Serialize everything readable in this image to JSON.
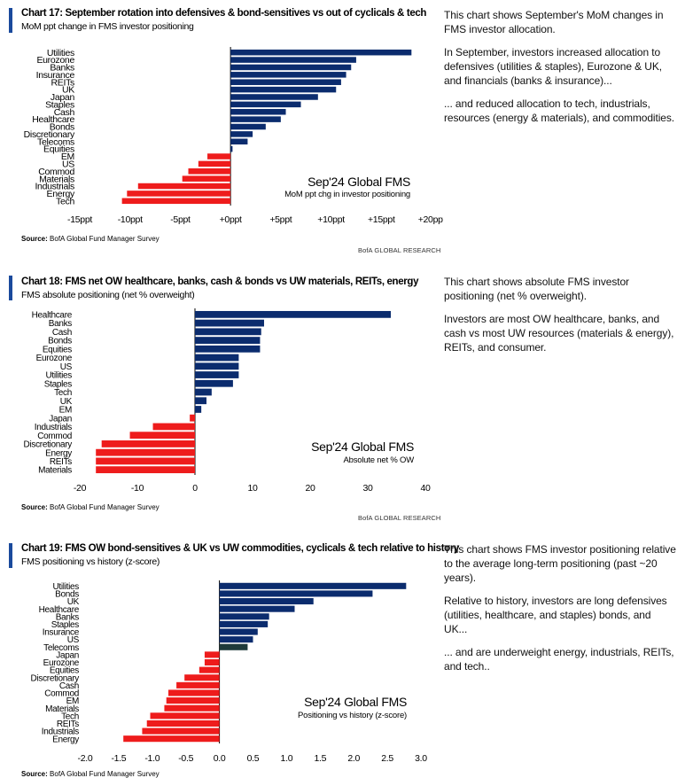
{
  "chart_data": [
    {
      "type": "bar",
      "orientation": "horizontal",
      "title": "Chart 17: September rotation into defensives & bond-sensitives vs out of cyclicals & tech",
      "subtitle": "MoM ppt change in FMS investor positioning",
      "annotation_title": "Sep'24 Global FMS",
      "annotation_sub": "MoM ppt chg in investor positioning",
      "categories": [
        "Utilities",
        "Eurozone",
        "Banks",
        "Insurance",
        "REITs",
        "UK",
        "Japan",
        "Staples",
        "Cash",
        "Healthcare",
        "Bonds",
        "Discretionary",
        "Telecoms",
        "Equities",
        "EM",
        "US",
        "Commod",
        "Materials",
        "Industrials",
        "Energy",
        "Tech"
      ],
      "values": [
        18,
        12.5,
        12,
        11.5,
        11,
        10.5,
        8.7,
        7,
        5.5,
        5,
        3.5,
        2.2,
        1.7,
        0.2,
        -2.3,
        -3.2,
        -4.2,
        -4.8,
        -9.2,
        -10.3,
        -10.8
      ],
      "xlim": [
        -15,
        20
      ],
      "xticks": [
        -15,
        -10,
        -5,
        0,
        5,
        10,
        15,
        20
      ],
      "xtick_labels": [
        "-15ppt",
        "-10ppt",
        "-5ppt",
        "+0ppt",
        "+5ppt",
        "+10ppt",
        "+15ppt",
        "+20ppt"
      ],
      "positive_color": "#0b2c6e",
      "negative_color": "#ee1c1c",
      "source": "BofA Global Fund Manager Survey",
      "source_label": "Source:",
      "brand": "BofA GLOBAL RESEARCH",
      "description": [
        "This chart shows September's MoM changes in FMS investor allocation.",
        "In September, investors increased allocation to defensives (utilities & staples), Eurozone & UK, and financials (banks & insurance)...",
        "... and reduced allocation to tech, industrials, resources (energy & materials), and commodities."
      ]
    },
    {
      "type": "bar",
      "orientation": "horizontal",
      "title": "Chart 18: FMS net OW healthcare, banks, cash & bonds vs UW materials, REITs, energy",
      "subtitle": "FMS absolute positioning (net % overweight)",
      "annotation_title": "Sep'24 Global FMS",
      "annotation_sub": "Absolute net % OW",
      "categories": [
        "Healthcare",
        "Banks",
        "Cash",
        "Bonds",
        "Equities",
        "Eurozone",
        "US",
        "Utilities",
        "Staples",
        "Tech",
        "UK",
        "EM",
        "Japan",
        "Industrials",
        "Commod",
        "Discretionary",
        "Energy",
        "REITs",
        "Materials"
      ],
      "values": [
        34,
        12,
        11.5,
        11.3,
        11.3,
        7.6,
        7.6,
        7.6,
        6.6,
        2.9,
        2,
        1.1,
        -0.9,
        -7.3,
        -11.3,
        -16.2,
        -17.2,
        -17.2,
        -17.2
      ],
      "xlim": [
        -20,
        40
      ],
      "xticks": [
        -20,
        -10,
        0,
        10,
        20,
        30,
        40
      ],
      "xtick_labels": [
        "-20",
        "-10",
        "0",
        "10",
        "20",
        "30",
        "40"
      ],
      "positive_color": "#0b2c6e",
      "negative_color": "#ee1c1c",
      "source": "BofA Global Fund Manager Survey",
      "source_label": "Source:",
      "brand": "BofA GLOBAL RESEARCH",
      "description": [
        "This chart shows absolute FMS investor positioning (net % overweight).",
        "Investors are most OW healthcare, banks, and cash vs most UW resources (materials & energy), REITs, and consumer."
      ]
    },
    {
      "type": "bar",
      "orientation": "horizontal",
      "title": "Chart 19: FMS OW bond-sensitives & UK vs UW commodities, cyclicals & tech relative to history",
      "subtitle": "FMS positioning vs history (z-score)",
      "annotation_title": "Sep'24 Global FMS",
      "annotation_sub": "Positioning vs history (z-score)",
      "categories": [
        "Utilities",
        "Bonds",
        "UK",
        "Healthcare",
        "Banks",
        "Staples",
        "Insurance",
        "US",
        "Telecoms",
        "Japan",
        "Eurozone",
        "Equities",
        "Discretionary",
        "Cash",
        "Commod",
        "EM",
        "Materials",
        "Tech",
        "REITs",
        "Industrials",
        "Energy"
      ],
      "values": [
        2.78,
        2.28,
        1.4,
        1.12,
        0.74,
        0.72,
        0.57,
        0.5,
        0.42,
        -0.22,
        -0.22,
        -0.3,
        -0.52,
        -0.64,
        -0.76,
        -0.79,
        -0.82,
        -1.03,
        -1.08,
        -1.15,
        -1.43
      ],
      "xlim": [
        -2,
        3
      ],
      "xticks": [
        -2,
        -1.5,
        -1,
        -0.5,
        0,
        0.5,
        1,
        1.5,
        2,
        2.5,
        3
      ],
      "xtick_labels": [
        "-2.0",
        "-1.5",
        "-1.0",
        "-0.5",
        "0.0",
        "0.5",
        "1.0",
        "1.5",
        "2.0",
        "2.5",
        "3.0"
      ],
      "positive_color": "#0b2c6e",
      "negative_color": "#ee1c1c",
      "highlight": {
        "category": "Telecoms",
        "color": "#1e3a3a"
      },
      "source": "BofA Global Fund Manager Survey",
      "source_label": "Source:",
      "description": [
        "This chart shows FMS investor positioning relative to the average long-term positioning (past ~20 years).",
        "Relative to history, investors are long defensives (utilities, healthcare, and staples) bonds, and UK...",
        "... and are underweight energy, industrials, REITs, and tech.."
      ]
    }
  ]
}
